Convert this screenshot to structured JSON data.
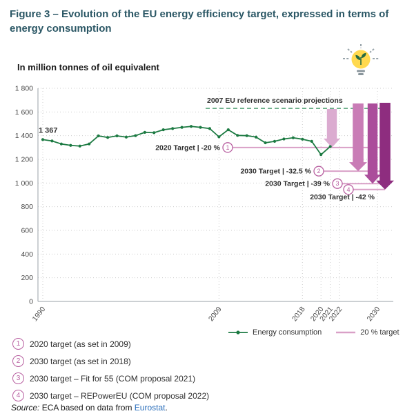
{
  "colors": {
    "title": "#2b5765",
    "target_badge": "#b85fa0",
    "link": "#2a6ebb"
  },
  "figure": {
    "title": "Figure 3 – Evolution of the EU energy efficiency target, expressed in terms of energy consumption",
    "subtitle": "In million tonnes of oil equivalent"
  },
  "chart_data": {
    "type": "line",
    "title": "Evolution of the EU energy efficiency target, expressed in terms of energy consumption",
    "ylabel": "million tonnes of oil equivalent",
    "ylim": [
      0,
      1800
    ],
    "ytick_step": 200,
    "x_tick_labels": [
      "1990",
      "2009",
      "2018",
      "2020",
      "2021",
      "2022",
      "2030"
    ],
    "start_year": 1990,
    "series": [
      {
        "name": "Energy consumption",
        "color": "#1c7a42",
        "values": [
          1367,
          1355,
          1330,
          1318,
          1312,
          1330,
          1398,
          1385,
          1398,
          1388,
          1400,
          1428,
          1425,
          1450,
          1460,
          1470,
          1478,
          1470,
          1460,
          1390,
          1450,
          1402,
          1400,
          1388,
          1340,
          1352,
          1372,
          1382,
          1370,
          1352,
          1240,
          1308
        ]
      }
    ],
    "first_point_label": "1 367",
    "reference_line": {
      "label": "2007 EU reference scenario projections",
      "value": 1630,
      "color": "#53a075"
    },
    "target_line_color": "#d9a0c7",
    "targets": [
      {
        "num": "1",
        "label": "2020 Target",
        "pct": "-20 %",
        "value": 1300,
        "arrow_color": "#dbabd0"
      },
      {
        "num": "2",
        "label": "2030 Target",
        "pct": "-32.5 %",
        "value": 1100,
        "arrow_color": "#c97cb6"
      },
      {
        "num": "3",
        "label": "2030 Target",
        "pct": "-39 %",
        "value": 995,
        "arrow_color": "#ab4d9b"
      },
      {
        "num": "4",
        "label": "2030 Target",
        "pct": "-42 %",
        "value": 945,
        "arrow_color": "#8e2d7f"
      }
    ],
    "legend": [
      {
        "label": "Energy consumption",
        "color": "#1c7a42"
      },
      {
        "label": "20 % target",
        "color": "#d9a0c7"
      }
    ]
  },
  "footnotes": [
    {
      "num": "1",
      "text": "2020 target (as set in 2009)"
    },
    {
      "num": "2",
      "text": "2030 target (as set in 2018)"
    },
    {
      "num": "3",
      "text": "2030 target – Fit for 55 (COM proposal 2021)"
    },
    {
      "num": "4",
      "text": "2030 target – REPowerEU (COM proposal 2022)"
    }
  ],
  "source": {
    "prefix": "Source:",
    "text": " ECA based on data from ",
    "link": "Eurostat",
    "suffix": "."
  }
}
